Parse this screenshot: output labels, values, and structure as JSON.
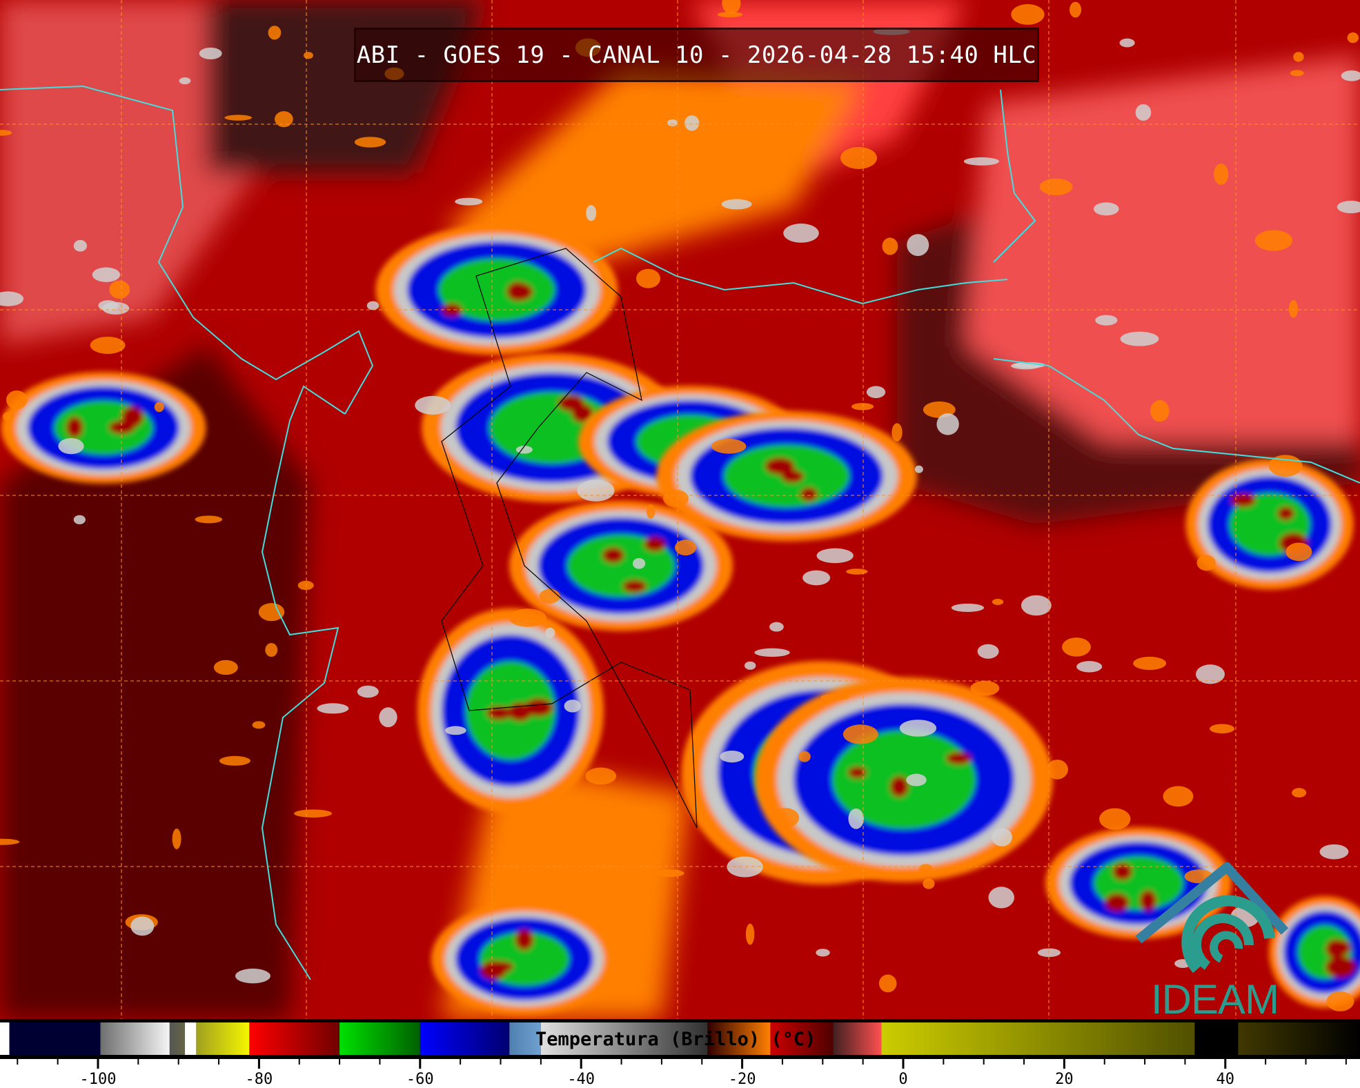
{
  "title": "ABI - GOES 19 - CANAL 10 - 2026-04-28 15:40 HLC",
  "logo_text": "IDEAM",
  "colorbar": {
    "label": "Temperatura (Brillo) (°C)",
    "unit": "°C",
    "range": [
      -112,
      57
    ],
    "tick_labels": [
      "-100",
      "-80",
      "-60",
      "-40",
      "-20",
      "0",
      "20",
      "40"
    ],
    "tick_values": [
      -100,
      -80,
      -60,
      -40,
      -20,
      0,
      20,
      40
    ],
    "minor_tick_step": 5,
    "segments": [
      {
        "from": -112.2,
        "to": -111,
        "colors": [
          "#ffffff",
          "#ffffff"
        ]
      },
      {
        "from": -111,
        "to": -99.7,
        "colors": [
          "#000033",
          "#000033"
        ]
      },
      {
        "from": -99.7,
        "to": -91.1,
        "colors": [
          "#6e6e6e",
          "#f5f5f5"
        ]
      },
      {
        "from": -91.1,
        "to": -89.2,
        "colors": [
          "#555555",
          "#666644"
        ]
      },
      {
        "from": -89.2,
        "to": -87.8,
        "colors": [
          "#ffffff",
          "#ffffff"
        ]
      },
      {
        "from": -87.8,
        "to": -81.2,
        "colors": [
          "#a0a020",
          "#f5f500"
        ]
      },
      {
        "from": -81.2,
        "to": -70,
        "colors": [
          "#ff0000",
          "#700000"
        ]
      },
      {
        "from": -70,
        "to": -60,
        "colors": [
          "#00e000",
          "#006000"
        ]
      },
      {
        "from": -60,
        "to": -48.9,
        "colors": [
          "#0000ff",
          "#000070"
        ]
      },
      {
        "from": -48.9,
        "to": -45,
        "colors": [
          "#5080b0",
          "#70a0d0"
        ]
      },
      {
        "from": -45,
        "to": -24.3,
        "colors": [
          "#e0e0e0",
          "#303030"
        ]
      },
      {
        "from": -24.3,
        "to": -16.5,
        "colors": [
          "#300000",
          "#ff8000"
        ]
      },
      {
        "from": -16.5,
        "to": -8.7,
        "colors": [
          "#cc0000",
          "#500000"
        ]
      },
      {
        "from": -8.7,
        "to": -2.7,
        "colors": [
          "#402020",
          "#ff5050"
        ]
      },
      {
        "from": -2.7,
        "to": 36.2,
        "colors": [
          "#cccc00",
          "#505000"
        ]
      },
      {
        "from": 36.2,
        "to": 41.6,
        "colors": [
          "#000000",
          "#000000"
        ]
      },
      {
        "from": 41.6,
        "to": 56.7,
        "colors": [
          "#403800",
          "#000000"
        ]
      }
    ]
  },
  "colors": {
    "background_warm": "#b00000",
    "dark_region": "#5a0000",
    "pink_region": "#f05050",
    "mid_cloud": "#ff8000",
    "coastline": "#40e0e0",
    "grid": "#ff9020",
    "logo": "#2a9d8f"
  }
}
